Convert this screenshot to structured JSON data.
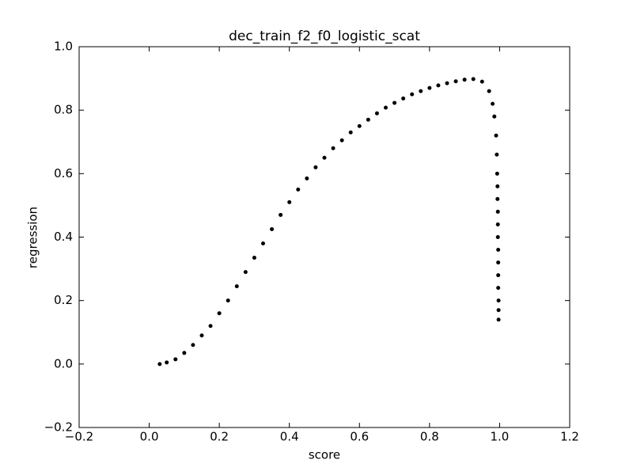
{
  "chart_data": {
    "type": "scatter",
    "title": "dec_train_f2_f0_logistic_scat",
    "x_label": "score",
    "y_label": "regression",
    "color": "#000000",
    "x": [
      0.03,
      0.05,
      0.075,
      0.1,
      0.125,
      0.15,
      0.175,
      0.2,
      0.225,
      0.25,
      0.275,
      0.3,
      0.325,
      0.35,
      0.375,
      0.4,
      0.425,
      0.45,
      0.475,
      0.5,
      0.525,
      0.55,
      0.575,
      0.6,
      0.625,
      0.65,
      0.675,
      0.7,
      0.725,
      0.75,
      0.775,
      0.8,
      0.825,
      0.85,
      0.875,
      0.9,
      0.925,
      0.95,
      0.97,
      0.98,
      0.985,
      0.99,
      0.992,
      0.993,
      0.994,
      0.994,
      0.995,
      0.995,
      0.995,
      0.996,
      0.996,
      0.996,
      0.996,
      0.997,
      0.997,
      0.997
    ],
    "y": [
      0.0,
      0.005,
      0.015,
      0.035,
      0.06,
      0.09,
      0.12,
      0.16,
      0.2,
      0.245,
      0.29,
      0.335,
      0.38,
      0.425,
      0.47,
      0.51,
      0.55,
      0.585,
      0.62,
      0.65,
      0.68,
      0.705,
      0.73,
      0.75,
      0.77,
      0.79,
      0.808,
      0.823,
      0.837,
      0.85,
      0.86,
      0.87,
      0.878,
      0.885,
      0.891,
      0.896,
      0.898,
      0.89,
      0.86,
      0.82,
      0.78,
      0.72,
      0.66,
      0.6,
      0.56,
      0.52,
      0.48,
      0.44,
      0.4,
      0.36,
      0.32,
      0.28,
      0.24,
      0.2,
      0.17,
      0.14
    ],
    "xlim": [
      -0.2,
      1.2
    ],
    "ylim": [
      -0.2,
      1.0
    ],
    "xticks": [
      {
        "value": -0.2,
        "label": "−0.2"
      },
      {
        "value": 0,
        "label": "0.0"
      },
      0.2,
      0.4,
      0.6,
      0.8,
      {
        "value": 1,
        "label": "1.0"
      },
      1.2
    ],
    "yticks": [
      {
        "value": -0.2,
        "label": "−0.2"
      },
      {
        "value": 0,
        "label": "0.0"
      },
      0.2,
      0.4,
      0.6,
      0.8,
      {
        "value": 1,
        "label": "1.0"
      }
    ]
  }
}
